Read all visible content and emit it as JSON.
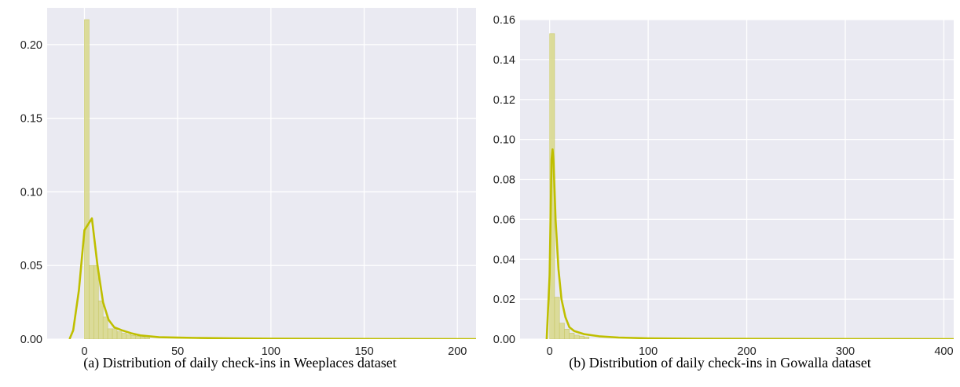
{
  "colors": {
    "plot_background": "#eaeaf2",
    "grid": "#ffffff",
    "histogram_fill": "#d8d88a",
    "histogram_edge": "#c9c96a",
    "kde_line": "#bfbf00"
  },
  "chart_data": [
    {
      "type": "histogram",
      "caption": "(a) Distribution of daily check-ins in Weeplaces dataset",
      "title": "",
      "xlabel": "",
      "ylabel": "",
      "xlim": [
        -20,
        210
      ],
      "ylim": [
        0,
        0.225
      ],
      "grid": true,
      "legend": "none",
      "xticks": [
        0,
        50,
        100,
        150,
        200
      ],
      "xtick_labels": [
        "0",
        "50",
        "100",
        "150",
        "200"
      ],
      "yticks": [
        0,
        0.05,
        0.1,
        0.15,
        0.2
      ],
      "ytick_labels": [
        "0.00",
        "0.05",
        "0.10",
        "0.15",
        "0.20"
      ],
      "bin_width": 2.5,
      "bins": [
        {
          "x0": 0,
          "height": 0.217
        },
        {
          "x0": 2.5,
          "height": 0.05
        },
        {
          "x0": 5,
          "height": 0.05
        },
        {
          "x0": 7.5,
          "height": 0.026
        },
        {
          "x0": 10,
          "height": 0.015
        },
        {
          "x0": 12.5,
          "height": 0.007
        },
        {
          "x0": 15,
          "height": 0.007
        },
        {
          "x0": 17.5,
          "height": 0.005
        },
        {
          "x0": 20,
          "height": 0.004
        },
        {
          "x0": 22.5,
          "height": 0.003
        },
        {
          "x0": 25,
          "height": 0.0025
        },
        {
          "x0": 27.5,
          "height": 0.002
        },
        {
          "x0": 30,
          "height": 0.0015
        },
        {
          "x0": 32.5,
          "height": 0.001
        }
      ],
      "kde": {
        "x": [
          -8,
          -6,
          -3,
          0,
          4,
          7,
          10,
          13,
          16,
          20,
          25,
          30,
          40,
          50,
          60,
          80,
          100,
          150,
          210
        ],
        "y": [
          0.0,
          0.006,
          0.033,
          0.074,
          0.082,
          0.05,
          0.025,
          0.013,
          0.008,
          0.006,
          0.004,
          0.0025,
          0.0013,
          0.001,
          0.0008,
          0.0005,
          0.0003,
          0.0001,
          0.0
        ]
      }
    },
    {
      "type": "histogram",
      "caption": "(b) Distribution of daily check-ins in Gowalla dataset",
      "title": "",
      "xlabel": "",
      "ylabel": "",
      "xlim": [
        -30,
        410
      ],
      "ylim": [
        0,
        0.16
      ],
      "grid": true,
      "legend": "none",
      "xticks": [
        0,
        100,
        200,
        300,
        400
      ],
      "xtick_labels": [
        "0",
        "100",
        "200",
        "300",
        "400"
      ],
      "yticks": [
        0,
        0.02,
        0.04,
        0.06,
        0.08,
        0.1,
        0.12,
        0.14,
        0.16
      ],
      "ytick_labels": [
        "0.00",
        "0.02",
        "0.04",
        "0.06",
        "0.08",
        "0.10",
        "0.12",
        "0.14",
        "0.16"
      ],
      "bin_width": 5,
      "bins": [
        {
          "x0": 0,
          "height": 0.153
        },
        {
          "x0": 5,
          "height": 0.021
        },
        {
          "x0": 10,
          "height": 0.008
        },
        {
          "x0": 15,
          "height": 0.005
        },
        {
          "x0": 20,
          "height": 0.003
        },
        {
          "x0": 25,
          "height": 0.002
        },
        {
          "x0": 30,
          "height": 0.0015
        },
        {
          "x0": 35,
          "height": 0.001
        }
      ],
      "kde": {
        "x": [
          -3,
          0,
          2,
          3,
          4,
          6,
          9,
          12,
          16,
          20,
          25,
          35,
          50,
          70,
          100,
          150,
          200,
          300,
          410
        ],
        "y": [
          0.0,
          0.032,
          0.09,
          0.095,
          0.088,
          0.06,
          0.035,
          0.02,
          0.011,
          0.006,
          0.004,
          0.0025,
          0.0014,
          0.0008,
          0.0004,
          0.0002,
          0.0001,
          3e-05,
          0.0
        ]
      }
    }
  ]
}
